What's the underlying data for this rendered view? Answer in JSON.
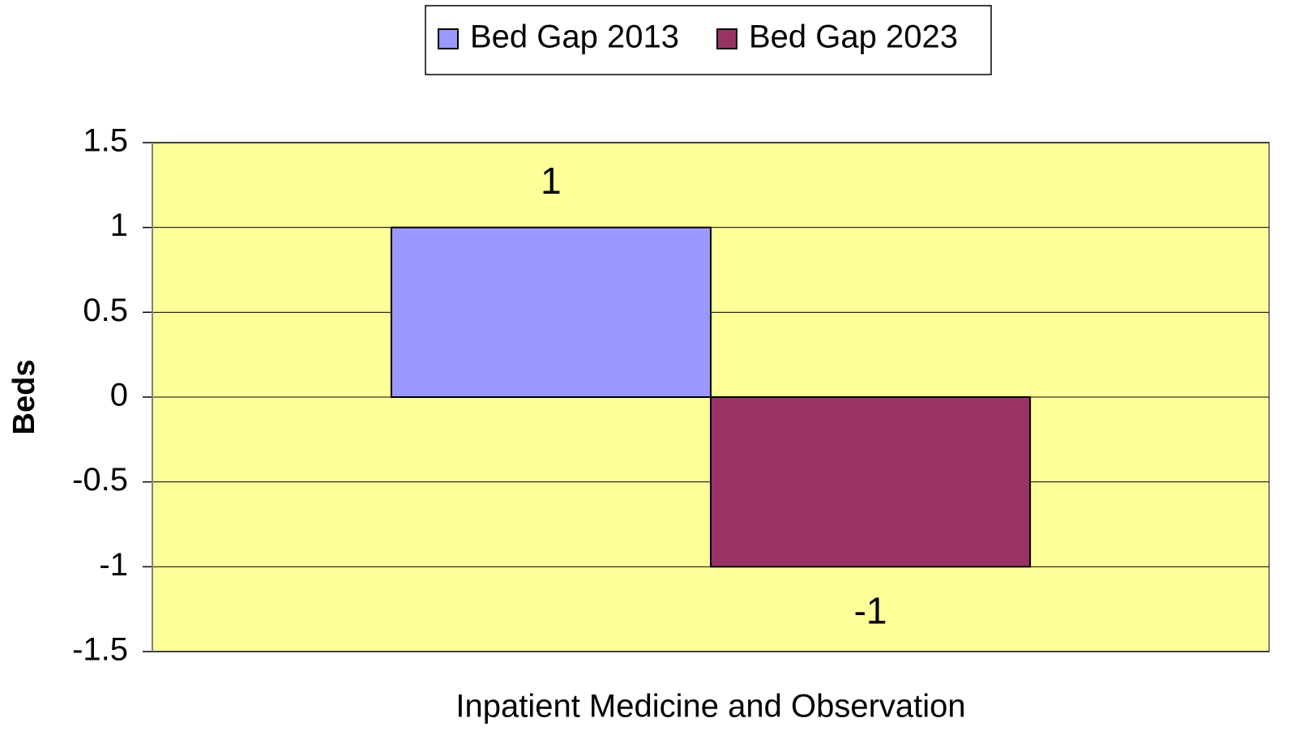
{
  "chart_data": {
    "type": "bar",
    "categories": [
      "Inpatient Medicine and Observation"
    ],
    "series": [
      {
        "name": "Bed Gap 2013",
        "color": "#9999ff",
        "values": [
          1
        ]
      },
      {
        "name": "Bed Gap 2023",
        "color": "#993366",
        "values": [
          -1
        ]
      }
    ],
    "y_label": "Beds",
    "ylim": [
      -1.5,
      1.5
    ],
    "yticks": [
      -1.5,
      -1,
      -0.5,
      0,
      0.5,
      1,
      1.5
    ],
    "grid": true,
    "legend": "top",
    "plot_background": "#ffff99"
  }
}
